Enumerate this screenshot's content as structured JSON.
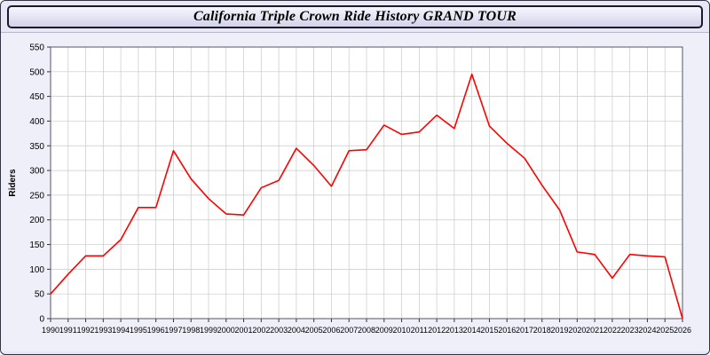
{
  "header": {
    "title": "California Triple Crown Ride History GRAND TOUR"
  },
  "colors": {
    "page_bg": "#e7e7f5",
    "titlebar_bg": "#e3e3f4",
    "line": "#ff0000",
    "grid": "#c9c9c9",
    "plot_bg": "#ffffff",
    "axis": "#555566"
  },
  "chart_data": {
    "type": "line",
    "title": "California Triple Crown Ride History GRAND TOUR",
    "xlabel": "",
    "ylabel": "Riders",
    "ylim": [
      0,
      550
    ],
    "y_tick_step": 50,
    "grid": true,
    "legend": "none",
    "line_color": "#ff0000",
    "grid_color": "#c9c9c9",
    "plot_bg": "#ffffff",
    "x": [
      1990,
      1991,
      1992,
      1993,
      1994,
      1995,
      1996,
      1997,
      1998,
      1999,
      2000,
      2001,
      2002,
      2003,
      2004,
      2005,
      2006,
      2007,
      2008,
      2009,
      2010,
      2011,
      2012,
      2013,
      2014,
      2015,
      2016,
      2017,
      2018,
      2019,
      2020,
      2021,
      2022,
      2023,
      2024,
      2025,
      2026
    ],
    "values": [
      50,
      90,
      127,
      127,
      160,
      225,
      225,
      340,
      283,
      243,
      212,
      210,
      265,
      280,
      345,
      310,
      268,
      340,
      342,
      392,
      373,
      378,
      412,
      385,
      495,
      390,
      355,
      325,
      270,
      220,
      135,
      130,
      82,
      130,
      127,
      125,
      0
    ],
    "y_ticks": [
      0,
      50,
      100,
      150,
      200,
      250,
      300,
      350,
      400,
      450,
      500,
      550
    ]
  }
}
